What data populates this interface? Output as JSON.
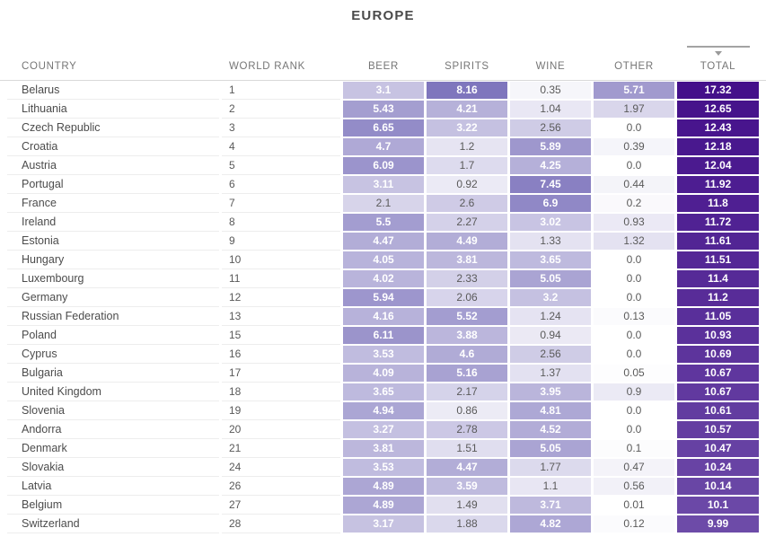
{
  "title": "EUROPE",
  "columns": {
    "country": "COUNTRY",
    "world_rank": "WORLD RANK",
    "beer": "BEER",
    "spirits": "SPIRITS",
    "wine": "WINE",
    "other": "OTHER",
    "total": "TOTAL"
  },
  "sort_indicator": {
    "column": "TOTAL",
    "direction": "desc"
  },
  "colors": {
    "measure_scale": {
      "min_color": "#ffffff",
      "max_color": "#7f76bd",
      "max_value": 8.16,
      "gamma": 0.85
    },
    "total_scale": {
      "top_color": "#44108a",
      "bottom_color": "#6d4ba8"
    },
    "white_text_threshold": 3.0,
    "light_text": "#ffffff",
    "dark_text": "#5a5a5a"
  },
  "chart_data": {
    "type": "heatmap-table",
    "title": "EUROPE",
    "columns": [
      "COUNTRY",
      "WORLD RANK",
      "BEER",
      "SPIRITS",
      "WINE",
      "OTHER",
      "TOTAL"
    ],
    "rows": [
      {
        "country": "Belarus",
        "world_rank": 1,
        "beer": 3.1,
        "spirits": 8.16,
        "wine": 0.35,
        "other": 5.71,
        "total": 17.32
      },
      {
        "country": "Lithuania",
        "world_rank": 2,
        "beer": 5.43,
        "spirits": 4.21,
        "wine": 1.04,
        "other": 1.97,
        "total": 12.65
      },
      {
        "country": "Czech Republic",
        "world_rank": 3,
        "beer": 6.65,
        "spirits": 3.22,
        "wine": 2.56,
        "other": 0.0,
        "total": 12.43
      },
      {
        "country": "Croatia",
        "world_rank": 4,
        "beer": 4.7,
        "spirits": 1.2,
        "wine": 5.89,
        "other": 0.39,
        "total": 12.18
      },
      {
        "country": "Austria",
        "world_rank": 5,
        "beer": 6.09,
        "spirits": 1.7,
        "wine": 4.25,
        "other": 0.0,
        "total": 12.04
      },
      {
        "country": "Portugal",
        "world_rank": 6,
        "beer": 3.11,
        "spirits": 0.92,
        "wine": 7.45,
        "other": 0.44,
        "total": 11.92
      },
      {
        "country": "France",
        "world_rank": 7,
        "beer": 2.1,
        "spirits": 2.6,
        "wine": 6.9,
        "other": 0.2,
        "total": 11.8
      },
      {
        "country": "Ireland",
        "world_rank": 8,
        "beer": 5.5,
        "spirits": 2.27,
        "wine": 3.02,
        "other": 0.93,
        "total": 11.72
      },
      {
        "country": "Estonia",
        "world_rank": 9,
        "beer": 4.47,
        "spirits": 4.49,
        "wine": 1.33,
        "other": 1.32,
        "total": 11.61
      },
      {
        "country": "Hungary",
        "world_rank": 10,
        "beer": 4.05,
        "spirits": 3.81,
        "wine": 3.65,
        "other": 0.0,
        "total": 11.51
      },
      {
        "country": "Luxembourg",
        "world_rank": 11,
        "beer": 4.02,
        "spirits": 2.33,
        "wine": 5.05,
        "other": 0.0,
        "total": 11.4
      },
      {
        "country": "Germany",
        "world_rank": 12,
        "beer": 5.94,
        "spirits": 2.06,
        "wine": 3.2,
        "other": 0.0,
        "total": 11.2
      },
      {
        "country": "Russian Federation",
        "world_rank": 13,
        "beer": 4.16,
        "spirits": 5.52,
        "wine": 1.24,
        "other": 0.13,
        "total": 11.05
      },
      {
        "country": "Poland",
        "world_rank": 15,
        "beer": 6.11,
        "spirits": 3.88,
        "wine": 0.94,
        "other": 0.0,
        "total": 10.93
      },
      {
        "country": "Cyprus",
        "world_rank": 16,
        "beer": 3.53,
        "spirits": 4.6,
        "wine": 2.56,
        "other": 0.0,
        "total": 10.69
      },
      {
        "country": "Bulgaria",
        "world_rank": 17,
        "beer": 4.09,
        "spirits": 5.16,
        "wine": 1.37,
        "other": 0.05,
        "total": 10.67
      },
      {
        "country": "United Kingdom",
        "world_rank": 18,
        "beer": 3.65,
        "spirits": 2.17,
        "wine": 3.95,
        "other": 0.9,
        "total": 10.67
      },
      {
        "country": "Slovenia",
        "world_rank": 19,
        "beer": 4.94,
        "spirits": 0.86,
        "wine": 4.81,
        "other": 0.0,
        "total": 10.61
      },
      {
        "country": "Andorra",
        "world_rank": 20,
        "beer": 3.27,
        "spirits": 2.78,
        "wine": 4.52,
        "other": 0.0,
        "total": 10.57
      },
      {
        "country": "Denmark",
        "world_rank": 21,
        "beer": 3.81,
        "spirits": 1.51,
        "wine": 5.05,
        "other": 0.1,
        "total": 10.47
      },
      {
        "country": "Slovakia",
        "world_rank": 24,
        "beer": 3.53,
        "spirits": 4.47,
        "wine": 1.77,
        "other": 0.47,
        "total": 10.24
      },
      {
        "country": "Latvia",
        "world_rank": 26,
        "beer": 4.89,
        "spirits": 3.59,
        "wine": 1.1,
        "other": 0.56,
        "total": 10.14
      },
      {
        "country": "Belgium",
        "world_rank": 27,
        "beer": 4.89,
        "spirits": 1.49,
        "wine": 3.71,
        "other": 0.01,
        "total": 10.1
      },
      {
        "country": "Switzerland",
        "world_rank": 28,
        "beer": 3.17,
        "spirits": 1.88,
        "wine": 4.82,
        "other": 0.12,
        "total": 9.99
      }
    ]
  }
}
